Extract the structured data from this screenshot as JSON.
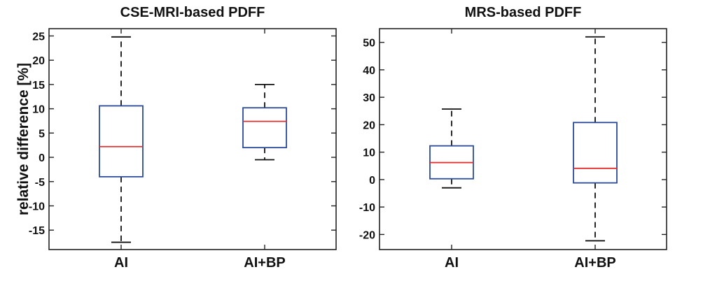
{
  "chart_data": [
    {
      "type": "boxplot",
      "title": "CSE-MRI-based PDFF",
      "ylabel": "relative difference [%]",
      "ylim": [
        -19,
        26.5
      ],
      "yticks": [
        -15,
        -10,
        -5,
        0,
        5,
        10,
        15,
        20,
        25
      ],
      "categories": [
        "AI",
        "AI+BP"
      ],
      "boxes": [
        {
          "category": "AI",
          "whisker_low": -17.5,
          "q1": -4,
          "median": 2.2,
          "q3": 10.6,
          "whisker_high": 24.8
        },
        {
          "category": "AI+BP",
          "whisker_low": -0.5,
          "q1": 2,
          "median": 7.4,
          "q3": 10.2,
          "whisker_high": 15
        }
      ],
      "grid": false
    },
    {
      "type": "boxplot",
      "title": "MRS-based PDFF",
      "ylabel": "",
      "ylim": [
        -25.5,
        55
      ],
      "yticks": [
        -20,
        -10,
        0,
        10,
        20,
        30,
        40,
        50
      ],
      "categories": [
        "AI",
        "AI+BP"
      ],
      "boxes": [
        {
          "category": "AI",
          "whisker_low": -3,
          "q1": 0.3,
          "median": 6.2,
          "q3": 12.3,
          "whisker_high": 25.7
        },
        {
          "category": "AI+BP",
          "whisker_low": -22.3,
          "q1": -1.2,
          "median": 4.1,
          "q3": 20.8,
          "whisker_high": 52
        }
      ],
      "grid": false
    }
  ],
  "colors": {
    "box": "#2b4a9a",
    "median": "#e0302f",
    "whisker": "#111111",
    "axes": "#222222"
  }
}
